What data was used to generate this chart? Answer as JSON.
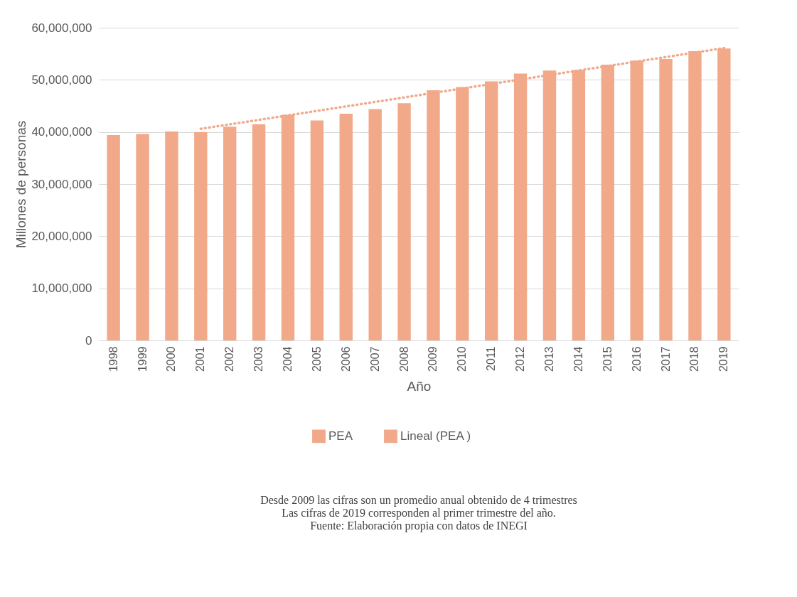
{
  "chart_data": {
    "type": "bar",
    "xlabel": "Año",
    "ylabel": "Millones de personas",
    "categories": [
      "1998",
      "1999",
      "2000",
      "2001",
      "2002",
      "2003",
      "2004",
      "2005",
      "2006",
      "2007",
      "2008",
      "2009",
      "2010",
      "2011",
      "2012",
      "2013",
      "2014",
      "2015",
      "2016",
      "2017",
      "2018",
      "2019"
    ],
    "series": [
      {
        "name": "PEA",
        "color": "#f1a98a",
        "values": [
          39400000,
          39600000,
          40100000,
          40000000,
          41000000,
          41500000,
          43300000,
          42200000,
          43500000,
          44400000,
          45500000,
          48000000,
          48600000,
          49700000,
          51200000,
          51800000,
          51900000,
          52900000,
          53700000,
          54000000,
          55500000,
          56000000
        ]
      },
      {
        "name": "Lineal (PEA )",
        "type": "line",
        "line_style": "dotted",
        "color": "#f1a98a",
        "values": [
          null,
          null,
          null,
          40600000,
          null,
          null,
          null,
          null,
          null,
          null,
          null,
          null,
          null,
          null,
          null,
          null,
          null,
          null,
          null,
          null,
          null,
          56100000
        ]
      }
    ],
    "ylim": [
      0,
      60000000
    ],
    "yticks": [
      0,
      {
        "value": 10000000,
        "label": "10,000,000"
      },
      {
        "value": 20000000,
        "label": "20,000,000"
      },
      {
        "value": 30000000,
        "label": "30,000,000"
      },
      {
        "value": 40000000,
        "label": "40,000,000"
      },
      {
        "value": 50000000,
        "label": "50,000,000"
      },
      {
        "value": 60000000,
        "label": "60,000,000"
      }
    ],
    "grid": "y",
    "legend": "bottom",
    "annotations": [
      "Desde 2009 las cifras son un promedio anual obtenido de 4 trimestres",
      "Las cifras de 2019 corresponden al primer trimestre del año.",
      "Fuente: Elaboración propia con datos de INEGI"
    ]
  }
}
